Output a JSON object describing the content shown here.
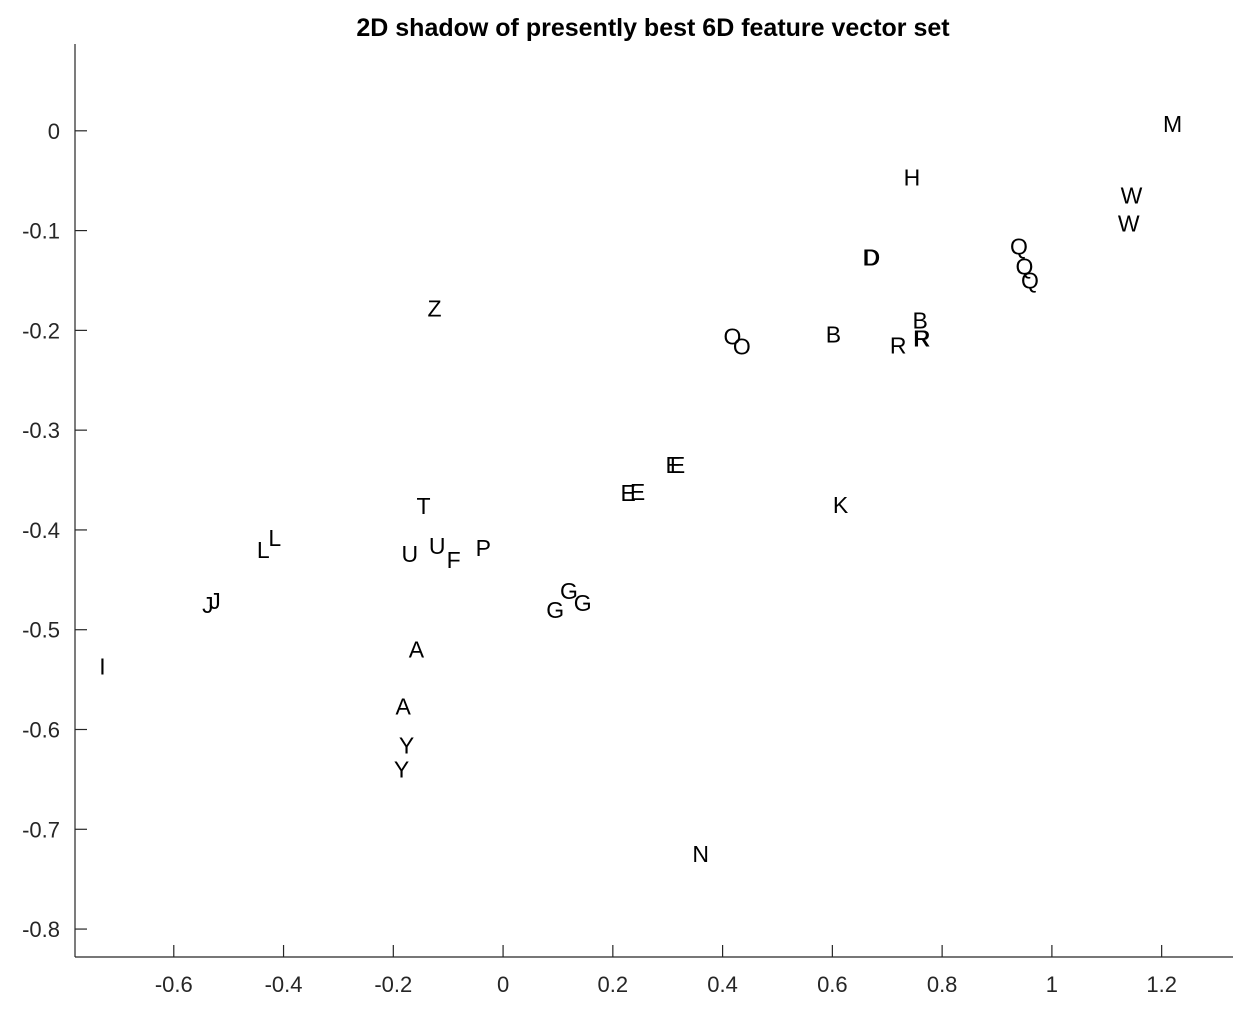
{
  "chart_data": {
    "type": "scatter",
    "title": "2D shadow of presently best 6D feature vector set",
    "xlabel": "",
    "ylabel": "",
    "xlim": [
      -0.78,
      1.33
    ],
    "ylim": [
      -0.828,
      0.087
    ],
    "grid": false,
    "legend": "none",
    "x_ticks": [
      -0.6,
      -0.4,
      -0.2,
      0,
      0.2,
      0.4,
      0.6,
      0.8,
      1,
      1.2
    ],
    "x_tick_labels": [
      "-0.6",
      "-0.4",
      "-0.2",
      "0",
      "0.2",
      "0.4",
      "0.6",
      "0.8",
      "1",
      "1.2"
    ],
    "y_ticks": [
      0,
      -0.1,
      -0.2,
      -0.3,
      -0.4,
      -0.5,
      -0.6,
      -0.7,
      -0.8
    ],
    "y_tick_labels": [
      "0",
      "-0.1",
      "-0.2",
      "-0.3",
      "-0.4",
      "-0.5",
      "-0.6",
      "-0.7",
      "-0.8"
    ],
    "points": [
      {
        "label": "M",
        "x": 1.22,
        "y": 0.007
      },
      {
        "label": "H",
        "x": 0.745,
        "y": -0.047
      },
      {
        "label": "W",
        "x": 1.145,
        "y": -0.065
      },
      {
        "label": "W",
        "x": 1.14,
        "y": -0.093
      },
      {
        "label": "D",
        "x": 0.67,
        "y": -0.127
      },
      {
        "label": "D",
        "x": 0.672,
        "y": -0.127
      },
      {
        "label": "Q",
        "x": 0.94,
        "y": -0.116
      },
      {
        "label": "Q",
        "x": 0.95,
        "y": -0.136
      },
      {
        "label": "Q",
        "x": 0.96,
        "y": -0.15
      },
      {
        "label": "Z",
        "x": -0.125,
        "y": -0.178
      },
      {
        "label": "O",
        "x": 0.418,
        "y": -0.206
      },
      {
        "label": "O",
        "x": 0.435,
        "y": -0.216
      },
      {
        "label": "B",
        "x": 0.602,
        "y": -0.204
      },
      {
        "label": "B",
        "x": 0.76,
        "y": -0.19
      },
      {
        "label": "R",
        "x": 0.762,
        "y": -0.208
      },
      {
        "label": "R",
        "x": 0.764,
        "y": -0.208
      },
      {
        "label": "R",
        "x": 0.72,
        "y": -0.215
      },
      {
        "label": "E",
        "x": 0.31,
        "y": -0.335
      },
      {
        "label": "E",
        "x": 0.318,
        "y": -0.335
      },
      {
        "label": "E",
        "x": 0.228,
        "y": -0.363
      },
      {
        "label": "E",
        "x": 0.245,
        "y": -0.362
      },
      {
        "label": "K",
        "x": 0.615,
        "y": -0.375
      },
      {
        "label": "T",
        "x": -0.145,
        "y": -0.376
      },
      {
        "label": "L",
        "x": -0.416,
        "y": -0.408
      },
      {
        "label": "L",
        "x": -0.437,
        "y": -0.42
      },
      {
        "label": "U",
        "x": -0.17,
        "y": -0.424
      },
      {
        "label": "U",
        "x": -0.12,
        "y": -0.416
      },
      {
        "label": "F",
        "x": -0.09,
        "y": -0.43
      },
      {
        "label": "P",
        "x": -0.036,
        "y": -0.418
      },
      {
        "label": "J",
        "x": -0.538,
        "y": -0.475
      },
      {
        "label": "J",
        "x": -0.525,
        "y": -0.471
      },
      {
        "label": "G",
        "x": 0.12,
        "y": -0.461
      },
      {
        "label": "G",
        "x": 0.145,
        "y": -0.473
      },
      {
        "label": "G",
        "x": 0.095,
        "y": -0.48
      },
      {
        "label": "I",
        "x": -0.73,
        "y": -0.537
      },
      {
        "label": "A",
        "x": -0.158,
        "y": -0.52
      },
      {
        "label": "A",
        "x": -0.182,
        "y": -0.577
      },
      {
        "label": "Y",
        "x": -0.176,
        "y": -0.616
      },
      {
        "label": "Y",
        "x": -0.185,
        "y": -0.64
      },
      {
        "label": "N",
        "x": 0.36,
        "y": -0.725
      }
    ]
  }
}
